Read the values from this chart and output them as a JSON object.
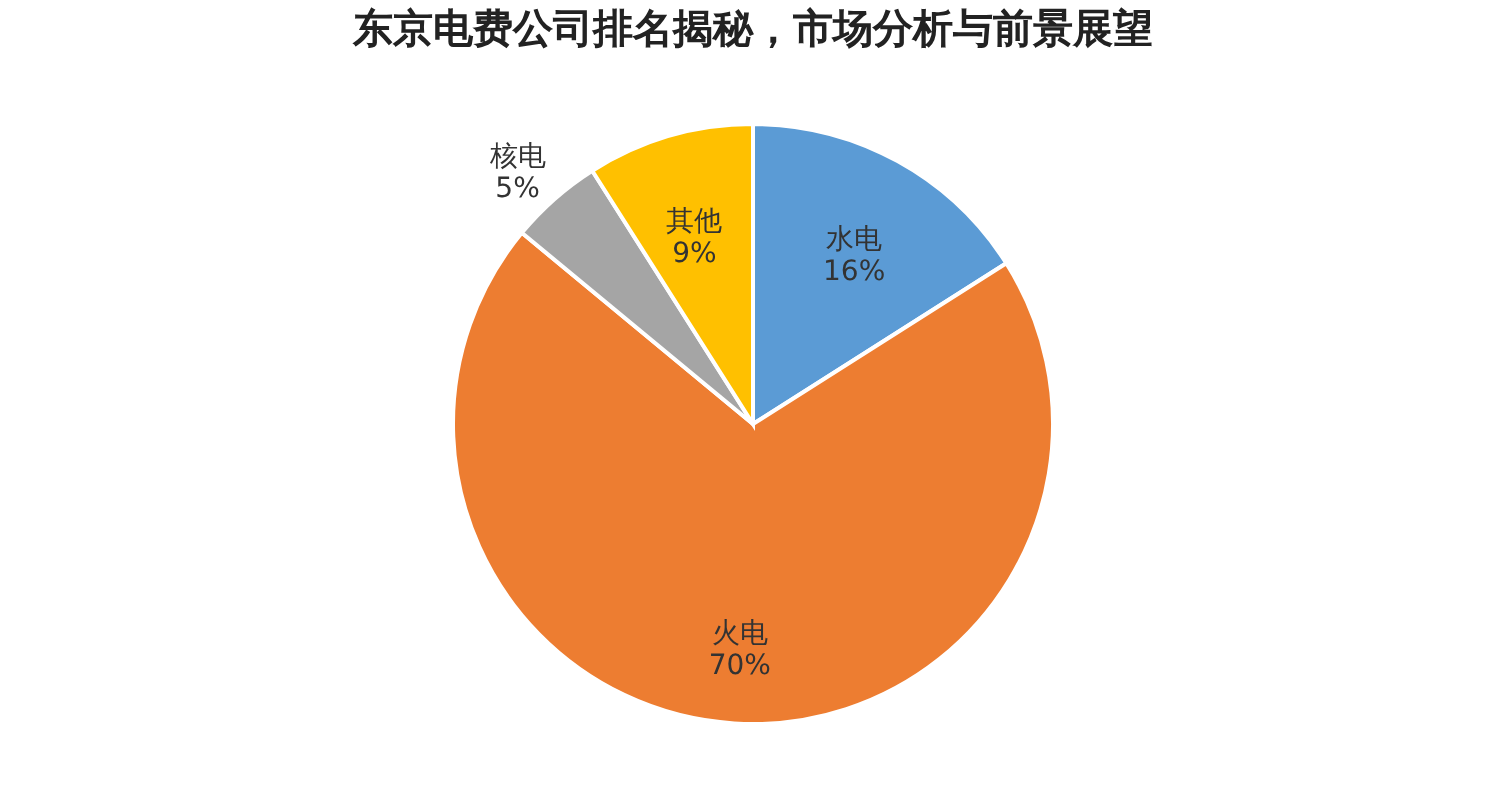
{
  "chart_data": {
    "type": "pie",
    "title": "东京电费公司排名揭秘，市场分析与前景展望",
    "categories": [
      "水电",
      "火电",
      "核电",
      "其他"
    ],
    "values": [
      16,
      70,
      5,
      9
    ],
    "value_labels": [
      "16%",
      "70%",
      "5%",
      "9%"
    ],
    "colors": [
      "#5b9bd5",
      "#ed7d31",
      "#a5a5a5",
      "#ffc000"
    ],
    "legend": false
  }
}
